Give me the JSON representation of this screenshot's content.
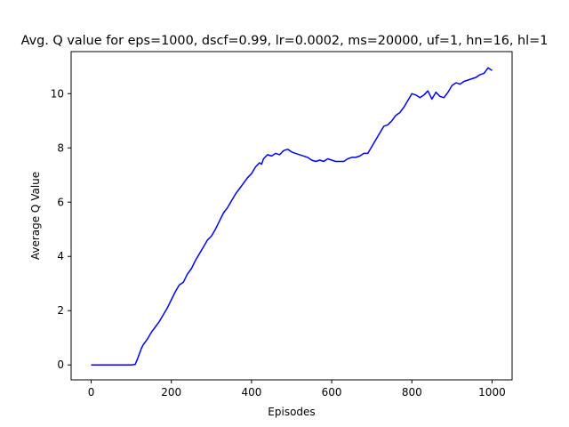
{
  "chart_data": {
    "type": "line",
    "title": "Avg. Q value for eps=1000, dscf=0.99, lr=0.0002, ms=20000, uf=1, hn=16, hl=1",
    "xlabel": "Episodes",
    "ylabel": "Average Q Value",
    "xlim": [
      -50,
      1050
    ],
    "ylim": [
      -0.55,
      11.55
    ],
    "xticks": [
      0,
      200,
      400,
      600,
      800,
      1000
    ],
    "yticks": [
      0,
      2,
      4,
      6,
      8,
      10
    ],
    "grid": false,
    "series": [
      {
        "name": "Average Q Value",
        "color": "#0000ff",
        "x": [
          0,
          20,
          40,
          60,
          80,
          100,
          110,
          115,
          120,
          125,
          130,
          140,
          150,
          160,
          170,
          180,
          190,
          200,
          210,
          220,
          230,
          240,
          250,
          260,
          270,
          280,
          290,
          300,
          310,
          320,
          330,
          340,
          350,
          360,
          370,
          380,
          390,
          400,
          410,
          420,
          425,
          430,
          440,
          450,
          460,
          470,
          480,
          490,
          500,
          510,
          520,
          530,
          540,
          550,
          560,
          570,
          580,
          590,
          600,
          610,
          620,
          630,
          640,
          650,
          660,
          670,
          680,
          690,
          700,
          710,
          720,
          730,
          740,
          750,
          760,
          770,
          780,
          790,
          800,
          810,
          820,
          830,
          840,
          850,
          860,
          870,
          880,
          890,
          900,
          910,
          920,
          930,
          940,
          950,
          960,
          970,
          980,
          985,
          990,
          995,
          1000
        ],
        "y": [
          0,
          0,
          0,
          0,
          0,
          0,
          0.02,
          0.2,
          0.4,
          0.6,
          0.75,
          0.95,
          1.2,
          1.4,
          1.6,
          1.85,
          2.1,
          2.4,
          2.7,
          2.95,
          3.05,
          3.35,
          3.55,
          3.85,
          4.1,
          4.35,
          4.6,
          4.75,
          5.0,
          5.3,
          5.6,
          5.8,
          6.05,
          6.3,
          6.5,
          6.7,
          6.9,
          7.05,
          7.3,
          7.45,
          7.4,
          7.6,
          7.75,
          7.7,
          7.8,
          7.75,
          7.9,
          7.95,
          7.85,
          7.8,
          7.75,
          7.7,
          7.65,
          7.55,
          7.5,
          7.55,
          7.5,
          7.6,
          7.55,
          7.5,
          7.5,
          7.5,
          7.6,
          7.65,
          7.65,
          7.7,
          7.8,
          7.8,
          8.05,
          8.3,
          8.55,
          8.8,
          8.85,
          9.0,
          9.2,
          9.3,
          9.5,
          9.75,
          10.0,
          9.95,
          9.85,
          9.95,
          10.1,
          9.8,
          10.05,
          9.9,
          9.85,
          10.05,
          10.3,
          10.4,
          10.35,
          10.45,
          10.5,
          10.55,
          10.6,
          10.7,
          10.75,
          10.85,
          10.95,
          10.9,
          10.85
        ]
      }
    ]
  }
}
